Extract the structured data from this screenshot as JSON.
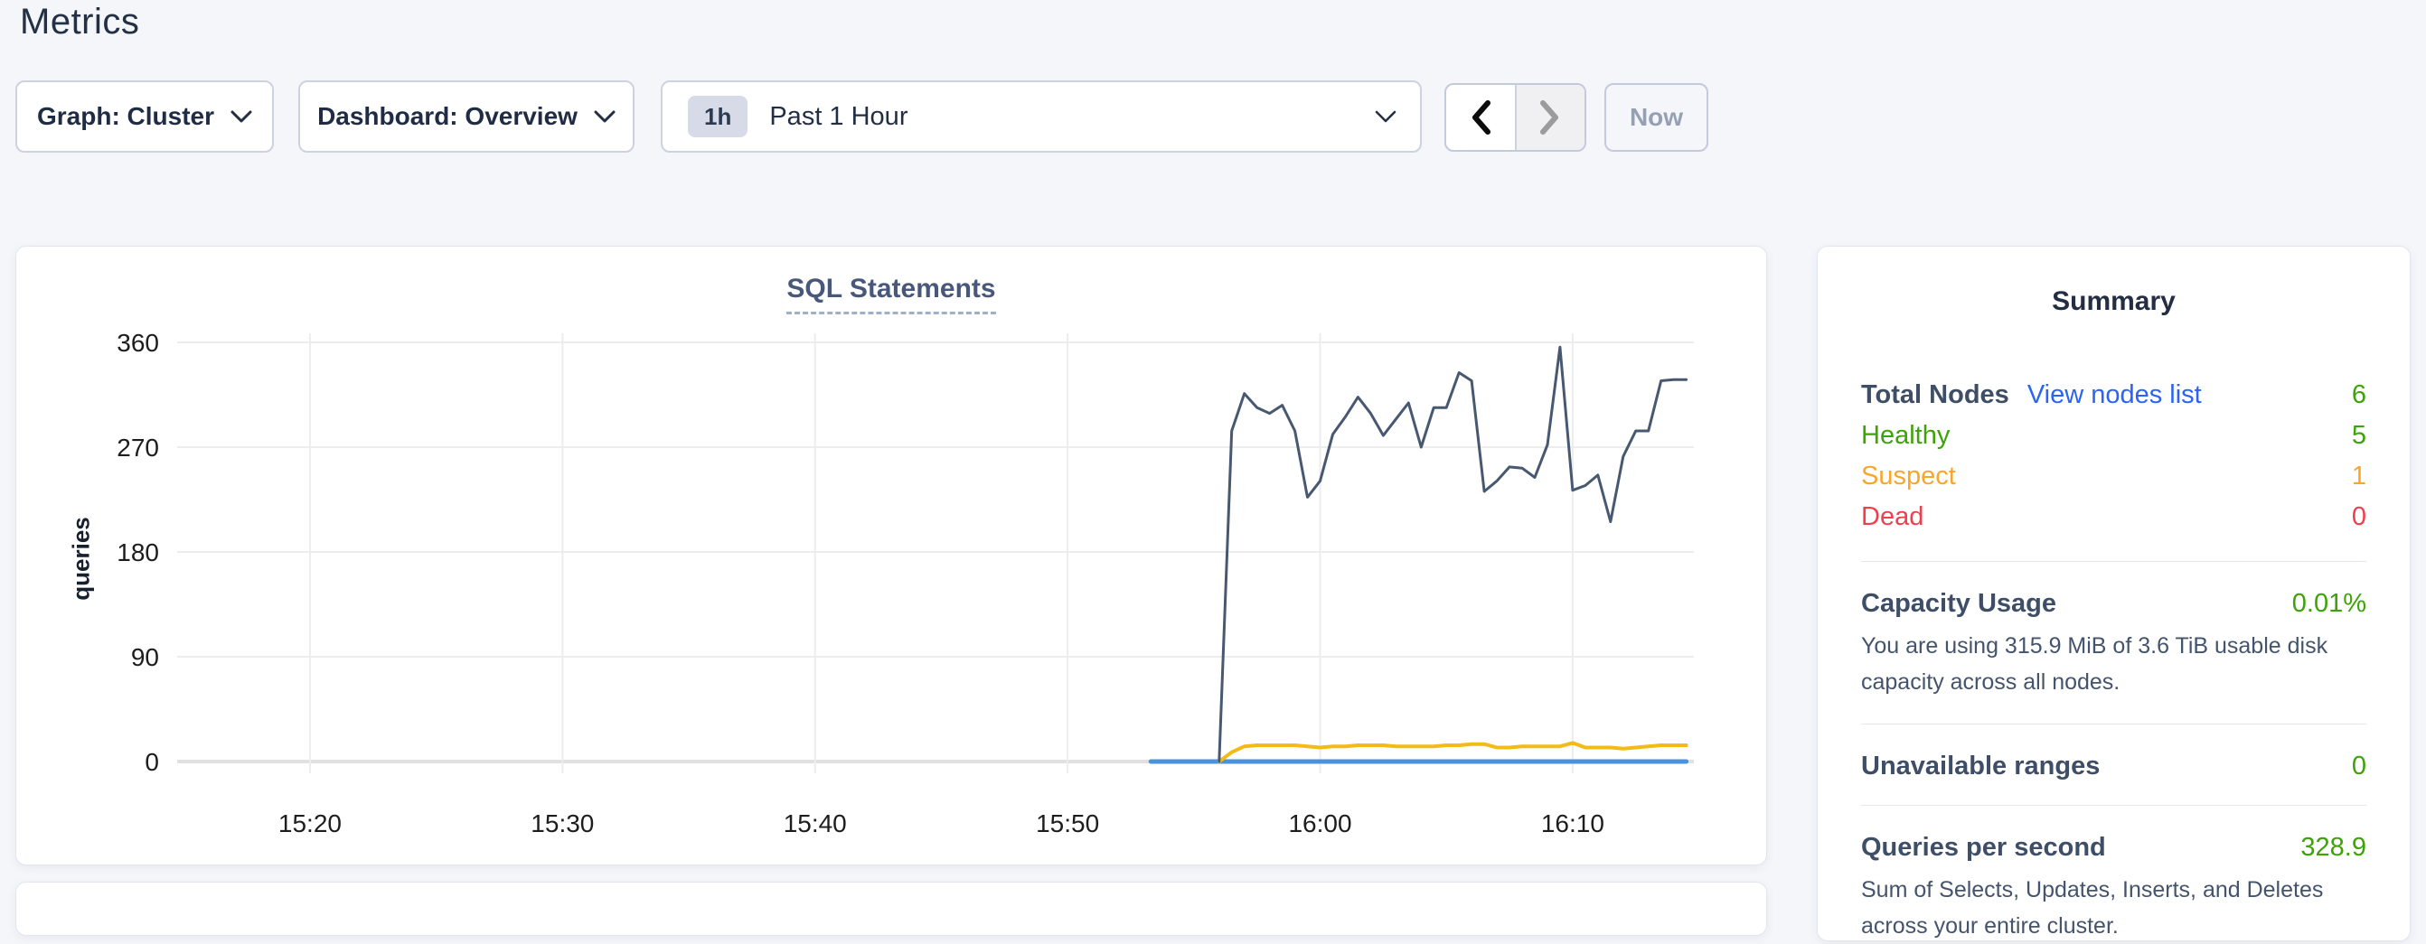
{
  "header": {
    "title": "Metrics"
  },
  "controls": {
    "graph_dropdown": "Graph: Cluster",
    "dashboard_dropdown": "Dashboard: Overview",
    "time_window_badge": "1h",
    "time_window_label": "Past 1 Hour",
    "now_button": "Now"
  },
  "colors": {
    "accent_link": "#2a63f5",
    "healthy_green": "#3da306",
    "suspect_orange": "#f9a629",
    "dead_red": "#f23d4c",
    "series_dark": "#475870",
    "series_yellow": "#f2bb16",
    "series_blue": "#4a92d9"
  },
  "chart_data": {
    "type": "line",
    "title": "SQL Statements",
    "ylabel": "queries",
    "xlabel": "",
    "grid": true,
    "legend": "none",
    "ylim": [
      0,
      360
    ],
    "yticks": [
      0,
      90,
      180,
      270,
      360
    ],
    "xlim_minutes_after_1500": [
      14.74,
      74.8
    ],
    "xticks": {
      "minutes_after_1500": [
        20,
        30,
        40,
        50,
        60,
        70
      ],
      "labels": [
        "15:20",
        "15:30",
        "15:40",
        "15:50",
        "16:00",
        "16:10"
      ]
    },
    "series": [
      {
        "name": "statements-blue",
        "color": "#4a92d9",
        "stroke_width": 5,
        "points": [
          [
            53.3,
            0
          ],
          [
            74.5,
            0
          ]
        ]
      },
      {
        "name": "statements-yellow",
        "color": "#f2bb16",
        "stroke_width": 4,
        "start_min": 56.0,
        "step_min": 0.5,
        "values": [
          0,
          8,
          13,
          14,
          14,
          14,
          14,
          13,
          12,
          13,
          13,
          14,
          14,
          14,
          13,
          13,
          13,
          13,
          14,
          14,
          15,
          15,
          12,
          12,
          13,
          13,
          13,
          13,
          16,
          12,
          12,
          12,
          11,
          12,
          13,
          14,
          14,
          14
        ]
      },
      {
        "name": "statements-dark",
        "color": "#475870",
        "stroke_width": 3,
        "start_min": 56.0,
        "step_min": 0.5,
        "values": [
          0,
          284,
          316,
          304,
          299,
          306,
          284,
          227,
          241,
          281,
          296,
          313,
          299,
          280,
          294,
          308,
          270,
          304,
          304,
          334,
          327,
          232,
          241,
          253,
          252,
          244,
          272,
          356,
          233,
          237,
          246,
          206,
          262,
          284,
          284,
          327,
          328,
          328
        ]
      }
    ]
  },
  "summary": {
    "title": "Summary",
    "total_nodes_label": "Total Nodes",
    "view_nodes_link": "View nodes list",
    "total_nodes_value": "6",
    "node_statuses": [
      {
        "label": "Healthy",
        "value": "5"
      },
      {
        "label": "Suspect",
        "value": "1"
      },
      {
        "label": "Dead",
        "value": "0"
      }
    ],
    "sections": [
      {
        "label": "Capacity Usage",
        "value": "0.01%",
        "description": "You are using 315.9 MiB of 3.6 TiB usable disk capacity across all nodes."
      },
      {
        "label": "Unavailable ranges",
        "value": "0",
        "description": ""
      },
      {
        "label": "Queries per second",
        "value": "328.9",
        "description": "Sum of Selects, Updates, Inserts, and Deletes across your entire cluster."
      }
    ]
  }
}
